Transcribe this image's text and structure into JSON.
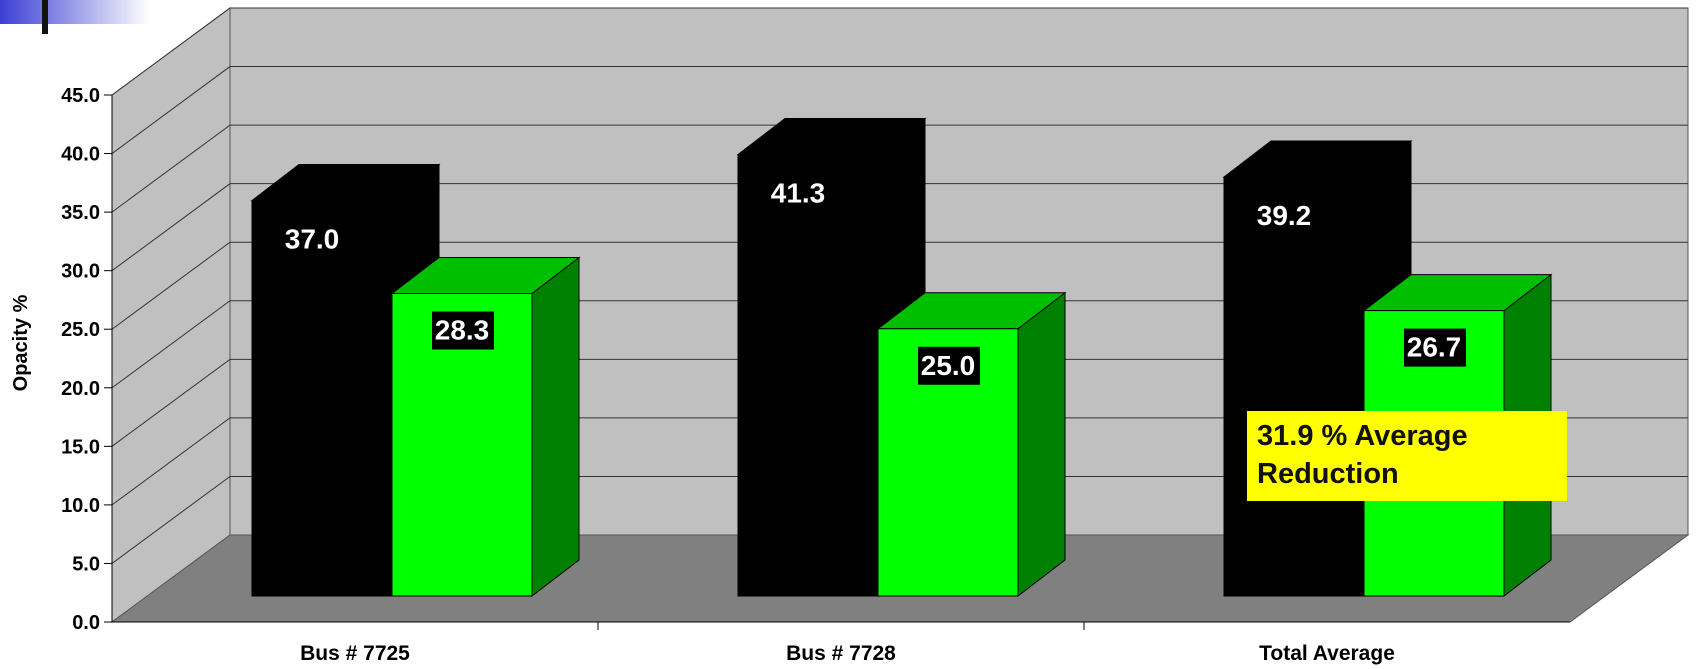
{
  "chart_data": {
    "type": "bar",
    "ylabel": "Opacity %",
    "ylim": [
      0,
      45
    ],
    "yticks": [
      "0.0",
      "5.0",
      "10.0",
      "15.0",
      "20.0",
      "25.0",
      "30.0",
      "35.0",
      "40.0",
      "45.0"
    ],
    "categories": [
      "Bus # 7725",
      "Bus # 7728",
      "Total Average"
    ],
    "series": [
      {
        "values": [
          37.0,
          41.3,
          39.2
        ],
        "labels": [
          "37.0",
          "41.3",
          "39.2"
        ],
        "color": "#000000"
      },
      {
        "values": [
          28.3,
          25.0,
          26.7
        ],
        "labels": [
          "28.3",
          "25.0",
          "26.7"
        ],
        "color": "#00ff00"
      }
    ],
    "grid": true,
    "annotation": "31.9 % Average Reduction"
  }
}
